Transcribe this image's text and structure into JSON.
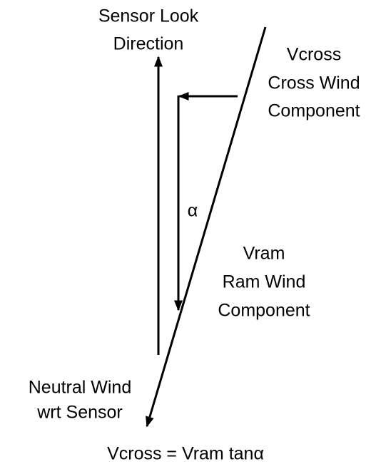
{
  "labels": {
    "sensor_look": [
      "Sensor Look",
      "Direction"
    ],
    "vcross": [
      "Vcross",
      "Cross Wind",
      "Component"
    ],
    "alpha": "α",
    "vram": [
      "Vram",
      "Ram Wind",
      "Component"
    ],
    "neutral_wind": [
      "Neutral Wind",
      "wrt Sensor"
    ],
    "equation": "Vcross = Vram tanα"
  }
}
